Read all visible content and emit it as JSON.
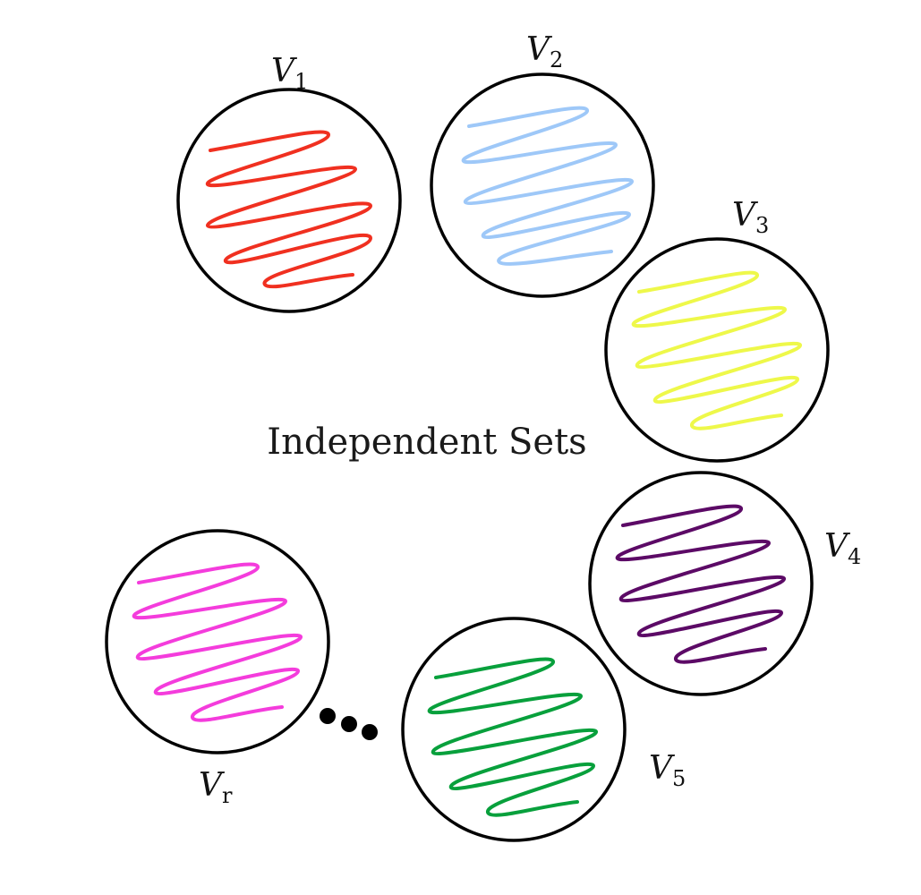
{
  "title": "Independent Sets",
  "sets": [
    {
      "id": "v1",
      "label": "V",
      "subscript": "1",
      "color": "#f03020"
    },
    {
      "id": "v2",
      "label": "V",
      "subscript": "2",
      "color": "#9ec8f8"
    },
    {
      "id": "v3",
      "label": "V",
      "subscript": "3",
      "color": "#eef84a"
    },
    {
      "id": "v4",
      "label": "V",
      "subscript": "4",
      "color": "#5c0a66"
    },
    {
      "id": "v5",
      "label": "V",
      "subscript": "5",
      "color": "#08a03c"
    },
    {
      "id": "vr",
      "label": "V",
      "subscript": "r",
      "color": "#f43cdc"
    }
  ],
  "ellipsis": {
    "dot_count": 3,
    "color": "#000000"
  }
}
